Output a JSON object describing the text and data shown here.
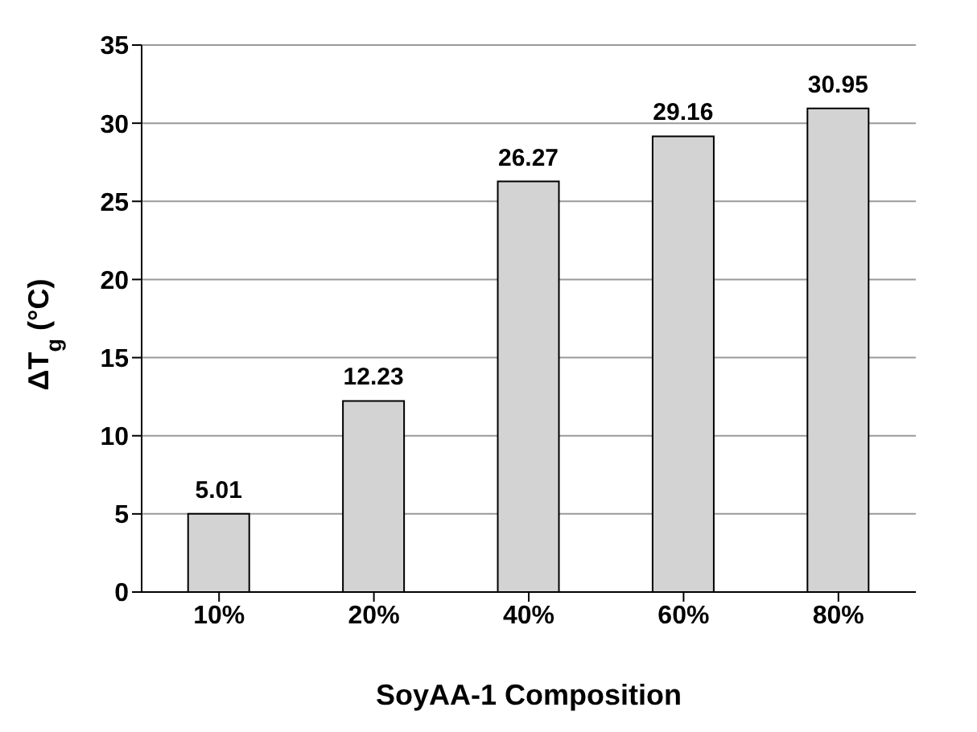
{
  "chart_data": {
    "type": "bar",
    "xlabel": "SoyAA-1 Composition",
    "ylabel": "ΔT$_{g}$ (°C)",
    "categories": [
      "10%",
      "20%",
      "40%",
      "60%",
      "80%"
    ],
    "values": [
      5.01,
      12.23,
      26.27,
      29.16,
      30.95
    ],
    "color": "#d3d3d3",
    "ylim": [
      0,
      35
    ],
    "yticks": [
      0,
      5,
      10,
      15,
      20,
      25,
      30,
      35
    ],
    "grid": "y",
    "data_labels": true
  }
}
